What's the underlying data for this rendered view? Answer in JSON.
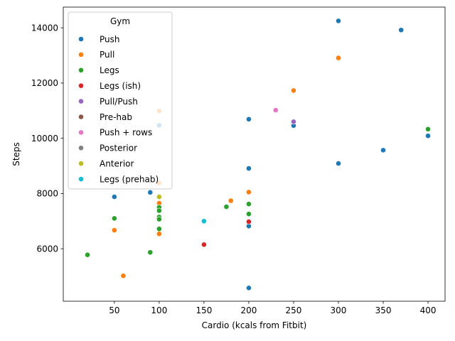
{
  "chart_data": {
    "type": "scatter",
    "xlabel": "Cardio (kcals from Fitbit)",
    "ylabel": "Steps",
    "xlim": [
      -7,
      419
    ],
    "ylim": [
      4100,
      14750
    ],
    "xticks": [
      50,
      100,
      150,
      200,
      250,
      300,
      350,
      400
    ],
    "yticks": [
      6000,
      8000,
      10000,
      12000,
      14000
    ],
    "grid": false,
    "legend": {
      "title": "Gym",
      "placement": "top-left"
    },
    "series": [
      {
        "name": "Push",
        "color": "#1f77b4",
        "points": [
          [
            300,
            14250
          ],
          [
            370,
            13920
          ],
          [
            200,
            10690
          ],
          [
            250,
            10460
          ],
          [
            100,
            10470
          ],
          [
            400,
            10090
          ],
          [
            350,
            9570
          ],
          [
            300,
            9090
          ],
          [
            200,
            8910
          ],
          [
            90,
            8040
          ],
          [
            50,
            7880
          ],
          [
            200,
            6820
          ],
          [
            200,
            4580
          ]
        ]
      },
      {
        "name": "Pull",
        "color": "#ff7f0e",
        "points": [
          [
            300,
            12910
          ],
          [
            250,
            11730
          ],
          [
            100,
            10990
          ],
          [
            100,
            8380
          ],
          [
            200,
            8050
          ],
          [
            180,
            7740
          ],
          [
            100,
            7650
          ],
          [
            50,
            6670
          ],
          [
            100,
            6540
          ],
          [
            60,
            5020
          ]
        ]
      },
      {
        "name": "Legs",
        "color": "#2ca02c",
        "points": [
          [
            400,
            10330
          ],
          [
            200,
            7620
          ],
          [
            175,
            7520
          ],
          [
            100,
            7500
          ],
          [
            100,
            7380
          ],
          [
            200,
            7260
          ],
          [
            100,
            7150
          ],
          [
            50,
            7100
          ],
          [
            100,
            7070
          ],
          [
            100,
            6720
          ],
          [
            90,
            5870
          ],
          [
            20,
            5780
          ]
        ]
      },
      {
        "name": "Legs (ish)",
        "color": "#d62728",
        "points": [
          [
            200,
            6980
          ],
          [
            150,
            6150
          ]
        ]
      },
      {
        "name": "Pull/Push",
        "color": "#9467bd",
        "points": [
          [
            250,
            10600
          ]
        ]
      },
      {
        "name": "Pre-hab",
        "color": "#8c564b",
        "points": []
      },
      {
        "name": "Push + rows",
        "color": "#e377c2",
        "points": [
          [
            230,
            11020
          ]
        ]
      },
      {
        "name": "Posterior",
        "color": "#7f7f7f",
        "points": []
      },
      {
        "name": "Anterior",
        "color": "#bcbd22",
        "points": [
          [
            100,
            7880
          ]
        ]
      },
      {
        "name": "Legs (prehab)",
        "color": "#17becf",
        "points": [
          [
            150,
            7000
          ]
        ]
      }
    ]
  }
}
